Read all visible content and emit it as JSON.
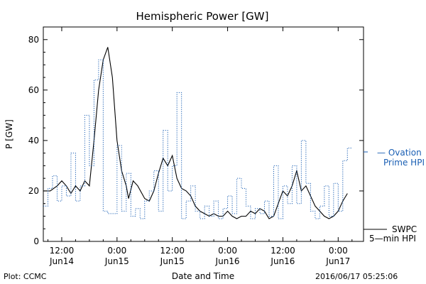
{
  "chart_data": {
    "type": "line",
    "title": "Hemispheric Power [GW]",
    "xlabel": "Date and Time",
    "ylabel": "P [GW]",
    "ylim": [
      0,
      85
    ],
    "xlim_hours": [
      -16,
      12
    ],
    "yticks": [
      0,
      20,
      40,
      60,
      80
    ],
    "xticks": [
      {
        "hour": -12,
        "time": "12:00",
        "date": "Jun14"
      },
      {
        "hour": 0,
        "time": "0:00",
        "date": "Jun15"
      },
      {
        "hour": 12,
        "time": "12:00",
        "date": "Jun15"
      },
      {
        "hour": 24,
        "time": "0:00",
        "date": "Jun16"
      },
      {
        "hour": 36,
        "time": "12:00",
        "date": "Jun16"
      },
      {
        "hour": 48,
        "time": "0:00",
        "date": "Jun17"
      }
    ],
    "x_axis_origin": "2016/06/15 00:00",
    "series": [
      {
        "name": "5-min HPI",
        "source": "SWPC",
        "color": "#000000",
        "style": "solid",
        "points": [
          [
            -16,
            20
          ],
          [
            -14.5,
            20
          ],
          [
            -13,
            22
          ],
          [
            -12,
            24
          ],
          [
            -11,
            22
          ],
          [
            -10,
            19
          ],
          [
            -9,
            22
          ],
          [
            -8,
            20
          ],
          [
            -7,
            24
          ],
          [
            -6,
            22
          ],
          [
            -5,
            40
          ],
          [
            -4,
            60
          ],
          [
            -3,
            72
          ],
          [
            -2,
            77
          ],
          [
            -1,
            65
          ],
          [
            0,
            40
          ],
          [
            1,
            28
          ],
          [
            2,
            22
          ],
          [
            2.5,
            17
          ],
          [
            3.5,
            24
          ],
          [
            4.5,
            22
          ],
          [
            6,
            17
          ],
          [
            7,
            16
          ],
          [
            8,
            20
          ],
          [
            9,
            27
          ],
          [
            10,
            33
          ],
          [
            11,
            30
          ],
          [
            12,
            34
          ],
          [
            13,
            25
          ],
          [
            14,
            21
          ],
          [
            15,
            20
          ],
          [
            16,
            18
          ],
          [
            17,
            14
          ],
          [
            18,
            12
          ],
          [
            19,
            11
          ],
          [
            20,
            10
          ],
          [
            21,
            11
          ],
          [
            22,
            10
          ],
          [
            23,
            10
          ],
          [
            24,
            12
          ],
          [
            25,
            10
          ],
          [
            26,
            9
          ],
          [
            27,
            10
          ],
          [
            28,
            10
          ],
          [
            29,
            12
          ],
          [
            30,
            11
          ],
          [
            31,
            13
          ],
          [
            32,
            12
          ],
          [
            33,
            9
          ],
          [
            34,
            10
          ],
          [
            35,
            15
          ],
          [
            36,
            20
          ],
          [
            37,
            18
          ],
          [
            38,
            22
          ],
          [
            39,
            28
          ],
          [
            40,
            20
          ],
          [
            41,
            22
          ],
          [
            42,
            18
          ],
          [
            43,
            14
          ],
          [
            44,
            12
          ],
          [
            45,
            10
          ],
          [
            46,
            9
          ],
          [
            47,
            10
          ],
          [
            48,
            12
          ],
          [
            49,
            16
          ],
          [
            50,
            19
          ]
        ]
      },
      {
        "name": "Ovation Prime HPI",
        "color": "#1a5fb4",
        "style": "dotted-step",
        "points": [
          [
            -16,
            14
          ],
          [
            -15,
            21
          ],
          [
            -14,
            26
          ],
          [
            -13,
            16
          ],
          [
            -12,
            22
          ],
          [
            -11,
            18
          ],
          [
            -10,
            35
          ],
          [
            -9,
            16
          ],
          [
            -8,
            22
          ],
          [
            -7,
            50
          ],
          [
            -6,
            30
          ],
          [
            -5,
            64
          ],
          [
            -4,
            72
          ],
          [
            -3,
            12
          ],
          [
            -2,
            11
          ],
          [
            -1,
            11
          ],
          [
            0,
            38
          ],
          [
            1,
            12
          ],
          [
            2,
            27
          ],
          [
            3,
            10
          ],
          [
            4,
            13
          ],
          [
            5,
            9
          ],
          [
            6,
            16
          ],
          [
            7,
            20
          ],
          [
            8,
            28
          ],
          [
            9,
            12
          ],
          [
            10,
            44
          ],
          [
            11,
            20
          ],
          [
            12,
            30
          ],
          [
            13,
            59
          ],
          [
            14,
            9
          ],
          [
            15,
            16
          ],
          [
            16,
            22
          ],
          [
            17,
            12
          ],
          [
            18,
            9
          ],
          [
            19,
            14
          ],
          [
            20,
            10
          ],
          [
            21,
            16
          ],
          [
            22,
            9
          ],
          [
            23,
            13
          ],
          [
            24,
            18
          ],
          [
            25,
            11
          ],
          [
            26,
            25
          ],
          [
            27,
            21
          ],
          [
            28,
            14
          ],
          [
            29,
            9
          ],
          [
            30,
            13
          ],
          [
            31,
            11
          ],
          [
            32,
            16
          ],
          [
            33,
            10
          ],
          [
            34,
            30
          ],
          [
            35,
            9
          ],
          [
            36,
            22
          ],
          [
            37,
            15
          ],
          [
            38,
            30
          ],
          [
            39,
            15
          ],
          [
            40,
            40
          ],
          [
            41,
            23
          ],
          [
            42,
            12
          ],
          [
            43,
            9
          ],
          [
            44,
            14
          ],
          [
            45,
            22
          ],
          [
            46,
            10
          ],
          [
            47,
            23
          ],
          [
            48,
            12
          ],
          [
            49,
            32
          ],
          [
            50,
            37
          ]
        ]
      }
    ],
    "legend": [
      {
        "label_line1": "— Ovation",
        "label_line2": "Prime HPI",
        "color": "#1a5fb4"
      },
      {
        "label_line1": "SWPC",
        "label_line2": "5—min HPI",
        "color": "#000000"
      }
    ]
  },
  "footer": {
    "plot_credit": "Plot: CCMC",
    "timestamp": "2016/06/17 05:25:06"
  }
}
